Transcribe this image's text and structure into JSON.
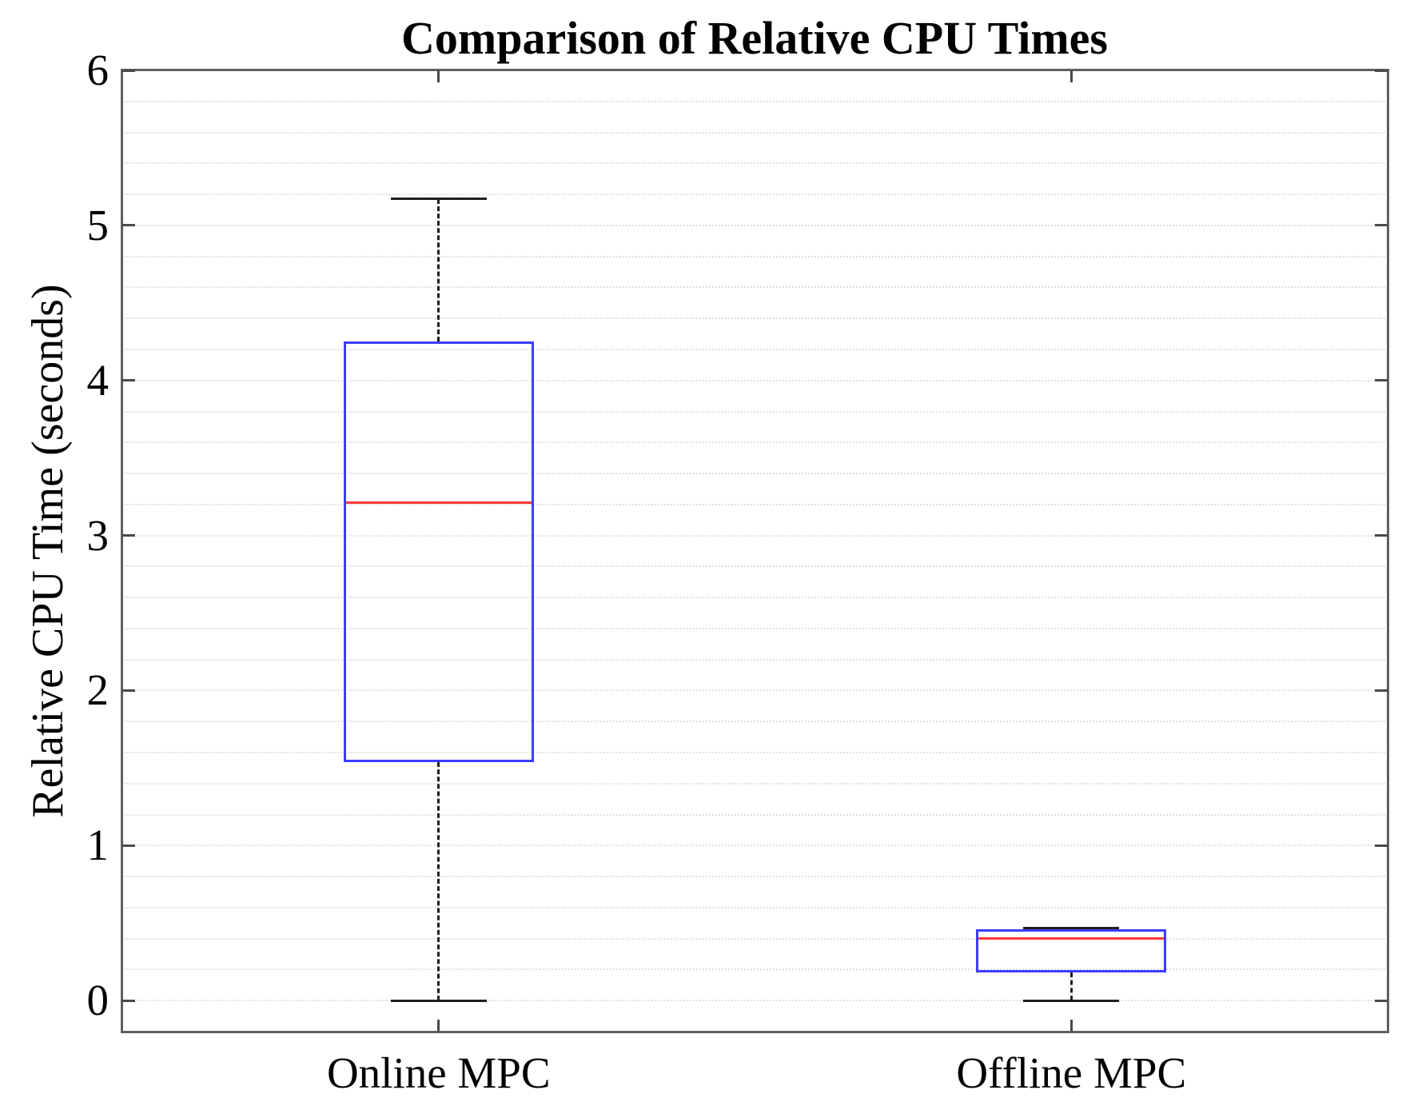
{
  "chart_data": {
    "type": "boxplot",
    "title": "Comparison of Relative CPU Times",
    "xlabel": "",
    "ylabel": "Relative CPU Time (seconds)",
    "categories": [
      "Online MPC",
      "Offline MPC"
    ],
    "series": [
      {
        "name": "Online MPC",
        "position": 1,
        "whisker_low": 0.0,
        "q1": 1.54,
        "median": 3.21,
        "q3": 4.25,
        "whisker_high": 5.17,
        "outliers": []
      },
      {
        "name": "Offline MPC",
        "position": 2,
        "whisker_low": 0.0,
        "q1": 0.18,
        "median": 0.4,
        "q3": 0.46,
        "whisker_high": 0.47,
        "outliers": []
      }
    ],
    "ylim": [
      -0.2,
      6.0
    ],
    "xlim": [
      0.5,
      2.5
    ],
    "yticks": [
      0,
      1,
      2,
      3,
      4,
      5,
      6
    ],
    "minor_grid_step": 0.2,
    "grid": "horizontal-minor-dotted",
    "legend": "none",
    "colors": {
      "box": "#3d3dff",
      "median": "#ff3b3b",
      "whisker": "#1f1f1f",
      "cap": "#1f1f1f",
      "grid": "#e1e1e1",
      "axis": "#5f5f5f",
      "tick": "#4a4a4a",
      "text": "#000000",
      "background": "#ffffff"
    }
  }
}
